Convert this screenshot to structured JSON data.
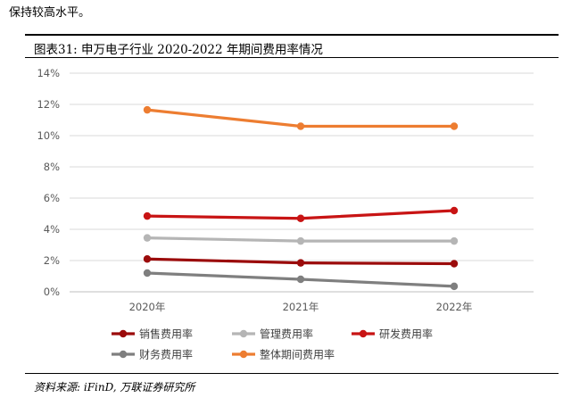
{
  "intro_text": "保持较高水平。",
  "figure_title": "图表31:  申万电子行业 2020-2022 年期间费用率情况",
  "source_text": "资料来源: iFinD, 万联证券研究所",
  "chart_data": {
    "type": "line",
    "x": [
      "2020年",
      "2021年",
      "2022年"
    ],
    "ylim": [
      0,
      14
    ],
    "yticks": [
      "0%",
      "2%",
      "4%",
      "6%",
      "8%",
      "10%",
      "12%",
      "14%"
    ],
    "grid": true,
    "legend_position": "bottom",
    "series": [
      {
        "name": "销售费用率",
        "color": "#9b0b0b",
        "values": [
          2.1,
          1.85,
          1.8
        ]
      },
      {
        "name": "管理费用率",
        "color": "#b5b5b5",
        "values": [
          3.45,
          3.25,
          3.25
        ]
      },
      {
        "name": "研发费用率",
        "color": "#c81414",
        "values": [
          4.85,
          4.7,
          5.2
        ]
      },
      {
        "name": "财务费用率",
        "color": "#7f7f7f",
        "values": [
          1.2,
          0.8,
          0.35
        ]
      },
      {
        "name": "整体期间费用率",
        "color": "#ed7d31",
        "values": [
          11.65,
          10.6,
          10.6
        ]
      }
    ]
  }
}
